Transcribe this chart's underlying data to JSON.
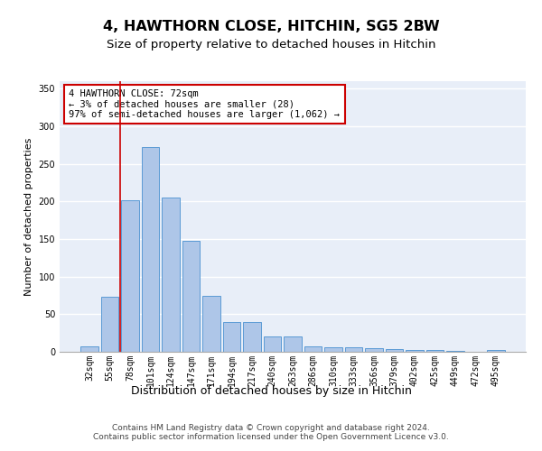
{
  "title": "4, HAWTHORN CLOSE, HITCHIN, SG5 2BW",
  "subtitle": "Size of property relative to detached houses in Hitchin",
  "xlabel": "Distribution of detached houses by size in Hitchin",
  "ylabel": "Number of detached properties",
  "categories": [
    "32sqm",
    "55sqm",
    "78sqm",
    "101sqm",
    "124sqm",
    "147sqm",
    "171sqm",
    "194sqm",
    "217sqm",
    "240sqm",
    "263sqm",
    "286sqm",
    "310sqm",
    "333sqm",
    "356sqm",
    "379sqm",
    "402sqm",
    "425sqm",
    "449sqm",
    "472sqm",
    "495sqm"
  ],
  "values": [
    7,
    73,
    202,
    272,
    205,
    148,
    75,
    40,
    40,
    20,
    20,
    7,
    6,
    6,
    5,
    4,
    3,
    3,
    1,
    0,
    3
  ],
  "bar_color": "#aec6e8",
  "bar_edge_color": "#5b9bd5",
  "vline_x": 1.5,
  "vline_color": "#cc0000",
  "annotation_text": "4 HAWTHORN CLOSE: 72sqm\n← 3% of detached houses are smaller (28)\n97% of semi-detached houses are larger (1,062) →",
  "annotation_box_color": "#cc0000",
  "ylim": [
    0,
    360
  ],
  "yticks": [
    0,
    50,
    100,
    150,
    200,
    250,
    300,
    350
  ],
  "bg_color": "#e8eef8",
  "grid_color": "#ffffff",
  "footer": "Contains HM Land Registry data © Crown copyright and database right 2024.\nContains public sector information licensed under the Open Government Licence v3.0.",
  "title_fontsize": 11.5,
  "subtitle_fontsize": 9.5,
  "xlabel_fontsize": 9,
  "ylabel_fontsize": 8,
  "tick_fontsize": 7,
  "annotation_fontsize": 7.5,
  "footer_fontsize": 6.5
}
